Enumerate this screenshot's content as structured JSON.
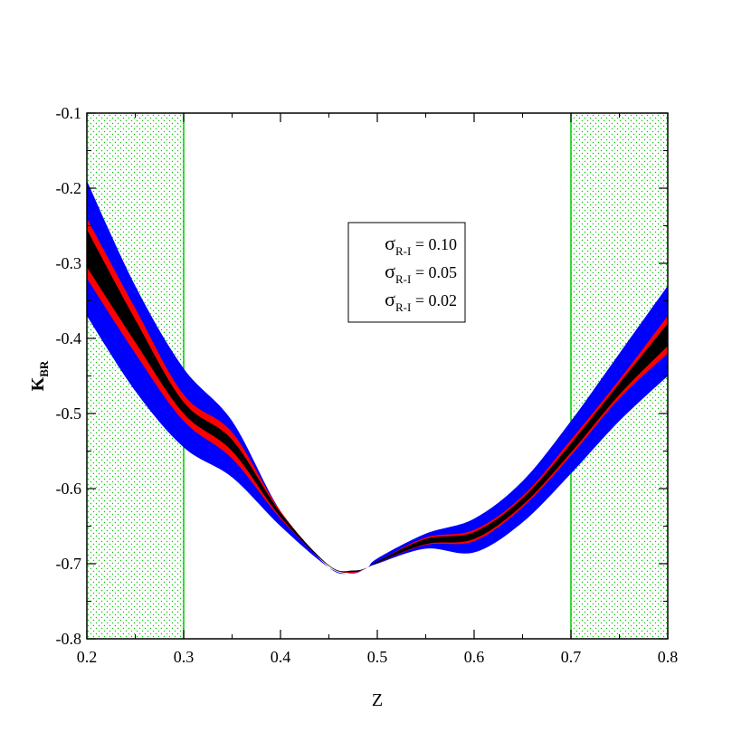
{
  "chart_data": {
    "type": "area",
    "xlabel": "Z",
    "ylabel": "K",
    "ylabel_sub": "BR",
    "xlim": [
      0.2,
      0.8
    ],
    "ylim": [
      -0.8,
      -0.1
    ],
    "x_ticks": [
      "0.2",
      "0.3",
      "0.4",
      "0.5",
      "0.6",
      "0.7",
      "0.8"
    ],
    "y_ticks": [
      "-0.8",
      "-0.7",
      "-0.6",
      "-0.5",
      "-0.4",
      "-0.3",
      "-0.2",
      "-0.1"
    ],
    "shaded_regions": [
      [
        0.2,
        0.3
      ],
      [
        0.7,
        0.8
      ]
    ],
    "shaded_color": "#00cc00",
    "legend": {
      "symbol": "σ",
      "subscript": "R-I",
      "entries": [
        "= 0.10",
        "= 0.05",
        "= 0.02"
      ],
      "placement": "top-center"
    },
    "x": [
      0.2,
      0.25,
      0.3,
      0.35,
      0.4,
      0.45,
      0.475,
      0.49,
      0.5,
      0.55,
      0.6,
      0.65,
      0.7,
      0.75,
      0.8
    ],
    "series": [
      {
        "name": "σR-I = 0.10",
        "color": "#0000ff",
        "lower": [
          -0.37,
          -0.47,
          -0.545,
          -0.585,
          -0.65,
          -0.705,
          -0.713,
          -0.705,
          -0.7,
          -0.68,
          -0.685,
          -0.645,
          -0.58,
          -0.51,
          -0.45
        ],
        "upper": [
          -0.19,
          -0.33,
          -0.44,
          -0.51,
          -0.63,
          -0.705,
          -0.712,
          -0.705,
          -0.693,
          -0.66,
          -0.64,
          -0.59,
          -0.51,
          -0.42,
          -0.33
        ]
      },
      {
        "name": "σR-I = 0.05",
        "color": "#ff0000",
        "lower": [
          -0.32,
          -0.42,
          -0.51,
          -0.56,
          -0.64,
          -0.703,
          -0.712,
          -0.705,
          -0.699,
          -0.675,
          -0.67,
          -0.625,
          -0.556,
          -0.48,
          -0.42
        ],
        "upper": [
          -0.24,
          -0.36,
          -0.475,
          -0.525,
          -0.63,
          -0.703,
          -0.71,
          -0.705,
          -0.697,
          -0.665,
          -0.655,
          -0.61,
          -0.535,
          -0.455,
          -0.37
        ]
      },
      {
        "name": "σR-I = 0.02",
        "color": "#000000",
        "lower": [
          -0.305,
          -0.405,
          -0.5,
          -0.55,
          -0.638,
          -0.703,
          -0.711,
          -0.705,
          -0.699,
          -0.674,
          -0.667,
          -0.622,
          -0.552,
          -0.475,
          -0.41
        ],
        "upper": [
          -0.255,
          -0.375,
          -0.485,
          -0.535,
          -0.632,
          -0.702,
          -0.709,
          -0.705,
          -0.697,
          -0.667,
          -0.658,
          -0.613,
          -0.54,
          -0.46,
          -0.38
        ]
      }
    ]
  }
}
